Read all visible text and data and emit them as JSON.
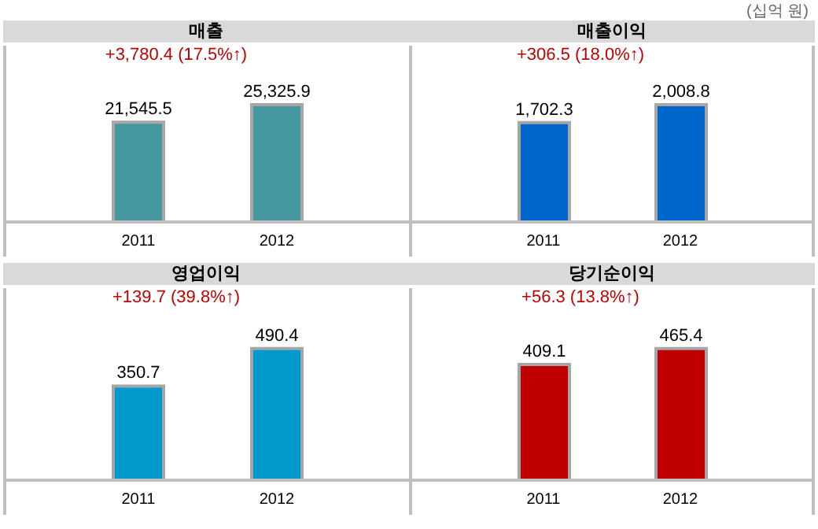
{
  "chart_data": [
    {
      "type": "bar",
      "title": "매출",
      "subtitle": "+3,780.4 (17.5%↑)",
      "categories": [
        "2011",
        "2012"
      ],
      "values": [
        21545.5,
        25325.9
      ],
      "color": "#45979f",
      "value_labels": [
        "21,545.5",
        "25,325.9"
      ]
    },
    {
      "type": "bar",
      "title": "매출이익",
      "subtitle": "+306.5 (18.0%↑)",
      "categories": [
        "2011",
        "2012"
      ],
      "values": [
        1702.3,
        2008.8
      ],
      "color": "#0066cc",
      "value_labels": [
        "1,702.3",
        "2,008.8"
      ],
      "annotations": [
        "(십억 원)"
      ]
    },
    {
      "type": "bar",
      "title": "영업이익",
      "subtitle": "+139.7 (39.8%↑)",
      "categories": [
        "2011",
        "2012"
      ],
      "values": [
        350.7,
        490.4
      ],
      "color": "#0099cc",
      "value_labels": [
        "350.7",
        "490.4"
      ]
    },
    {
      "type": "bar",
      "title": "당기순이익",
      "subtitle": "+56.3 (13.8%↑)",
      "categories": [
        "2011",
        "2012"
      ],
      "values": [
        409.1,
        465.4
      ],
      "color": "#c00000",
      "value_labels": [
        "409.1",
        "465.4"
      ]
    }
  ]
}
